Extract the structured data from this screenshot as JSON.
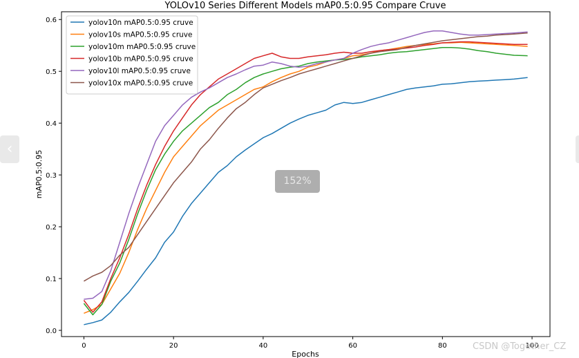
{
  "viewer": {
    "zoom_label": "152%",
    "prev_icon": "chevron-left-icon",
    "prev_symbol": "‹",
    "next_icon": "chevron-right-icon",
    "watermark": "CSDN @Together_CZ"
  },
  "chart_data": {
    "type": "line",
    "title": "YOLOv10 Series Different Models mAP0.5:0.95 Compare Cruve",
    "xlabel": "Epochs",
    "ylabel": "mAP0.5:0.95",
    "xlim": [
      -5,
      104
    ],
    "ylim": [
      -0.012,
      0.615
    ],
    "xticks": [
      0,
      20,
      40,
      60,
      80,
      100
    ],
    "yticks": [
      0.0,
      0.1,
      0.2,
      0.3,
      0.4,
      0.5,
      0.6
    ],
    "grid": false,
    "legend": "top-left",
    "series": [
      {
        "name": "yolov10n mAP0.5:0.95 cruve",
        "color": "#1f77b4",
        "points": [
          [
            0,
            0.011
          ],
          [
            2,
            0.015
          ],
          [
            4,
            0.02
          ],
          [
            6,
            0.035
          ],
          [
            8,
            0.055
          ],
          [
            10,
            0.073
          ],
          [
            12,
            0.095
          ],
          [
            14,
            0.118
          ],
          [
            16,
            0.14
          ],
          [
            18,
            0.17
          ],
          [
            20,
            0.19
          ],
          [
            22,
            0.22
          ],
          [
            24,
            0.245
          ],
          [
            26,
            0.265
          ],
          [
            28,
            0.285
          ],
          [
            30,
            0.305
          ],
          [
            32,
            0.318
          ],
          [
            34,
            0.335
          ],
          [
            36,
            0.348
          ],
          [
            38,
            0.36
          ],
          [
            40,
            0.372
          ],
          [
            42,
            0.38
          ],
          [
            44,
            0.39
          ],
          [
            46,
            0.4
          ],
          [
            48,
            0.408
          ],
          [
            50,
            0.415
          ],
          [
            52,
            0.42
          ],
          [
            54,
            0.425
          ],
          [
            56,
            0.435
          ],
          [
            58,
            0.44
          ],
          [
            60,
            0.438
          ],
          [
            62,
            0.44
          ],
          [
            64,
            0.445
          ],
          [
            66,
            0.45
          ],
          [
            68,
            0.455
          ],
          [
            70,
            0.46
          ],
          [
            72,
            0.465
          ],
          [
            74,
            0.468
          ],
          [
            76,
            0.47
          ],
          [
            78,
            0.472
          ],
          [
            80,
            0.475
          ],
          [
            82,
            0.476
          ],
          [
            84,
            0.478
          ],
          [
            86,
            0.48
          ],
          [
            88,
            0.481
          ],
          [
            90,
            0.482
          ],
          [
            92,
            0.483
          ],
          [
            94,
            0.484
          ],
          [
            96,
            0.485
          ],
          [
            99,
            0.488
          ]
        ]
      },
      {
        "name": "yolov10s mAP0.5:0.95 cruve",
        "color": "#ff7f0e",
        "points": [
          [
            0,
            0.033
          ],
          [
            2,
            0.04
          ],
          [
            4,
            0.05
          ],
          [
            6,
            0.08
          ],
          [
            8,
            0.11
          ],
          [
            10,
            0.15
          ],
          [
            12,
            0.195
          ],
          [
            14,
            0.235
          ],
          [
            16,
            0.27
          ],
          [
            18,
            0.305
          ],
          [
            20,
            0.335
          ],
          [
            22,
            0.355
          ],
          [
            24,
            0.375
          ],
          [
            26,
            0.395
          ],
          [
            28,
            0.41
          ],
          [
            30,
            0.425
          ],
          [
            32,
            0.435
          ],
          [
            34,
            0.445
          ],
          [
            36,
            0.455
          ],
          [
            38,
            0.465
          ],
          [
            40,
            0.47
          ],
          [
            42,
            0.48
          ],
          [
            44,
            0.488
          ],
          [
            46,
            0.495
          ],
          [
            48,
            0.5
          ],
          [
            50,
            0.508
          ],
          [
            52,
            0.512
          ],
          [
            54,
            0.518
          ],
          [
            56,
            0.522
          ],
          [
            58,
            0.525
          ],
          [
            60,
            0.53
          ],
          [
            62,
            0.532
          ],
          [
            64,
            0.535
          ],
          [
            66,
            0.54
          ],
          [
            68,
            0.542
          ],
          [
            70,
            0.545
          ],
          [
            72,
            0.548
          ],
          [
            74,
            0.55
          ],
          [
            76,
            0.552
          ],
          [
            78,
            0.553
          ],
          [
            80,
            0.555
          ],
          [
            82,
            0.555
          ],
          [
            84,
            0.556
          ],
          [
            86,
            0.555
          ],
          [
            88,
            0.554
          ],
          [
            90,
            0.553
          ],
          [
            92,
            0.552
          ],
          [
            94,
            0.551
          ],
          [
            96,
            0.55
          ],
          [
            99,
            0.548
          ]
        ]
      },
      {
        "name": "yolov10m mAP0.5:0.95 cruve",
        "color": "#2ca02c",
        "points": [
          [
            0,
            0.052
          ],
          [
            2,
            0.03
          ],
          [
            4,
            0.05
          ],
          [
            6,
            0.095
          ],
          [
            8,
            0.13
          ],
          [
            10,
            0.175
          ],
          [
            12,
            0.225
          ],
          [
            14,
            0.27
          ],
          [
            16,
            0.31
          ],
          [
            18,
            0.34
          ],
          [
            20,
            0.365
          ],
          [
            22,
            0.385
          ],
          [
            24,
            0.4
          ],
          [
            26,
            0.415
          ],
          [
            28,
            0.43
          ],
          [
            30,
            0.44
          ],
          [
            32,
            0.455
          ],
          [
            34,
            0.465
          ],
          [
            36,
            0.478
          ],
          [
            38,
            0.488
          ],
          [
            40,
            0.495
          ],
          [
            42,
            0.5
          ],
          [
            44,
            0.505
          ],
          [
            46,
            0.508
          ],
          [
            48,
            0.51
          ],
          [
            50,
            0.515
          ],
          [
            52,
            0.518
          ],
          [
            54,
            0.52
          ],
          [
            56,
            0.522
          ],
          [
            58,
            0.523
          ],
          [
            60,
            0.525
          ],
          [
            62,
            0.528
          ],
          [
            64,
            0.53
          ],
          [
            66,
            0.532
          ],
          [
            68,
            0.535
          ],
          [
            70,
            0.537
          ],
          [
            72,
            0.538
          ],
          [
            74,
            0.54
          ],
          [
            76,
            0.542
          ],
          [
            78,
            0.544
          ],
          [
            80,
            0.546
          ],
          [
            82,
            0.546
          ],
          [
            84,
            0.545
          ],
          [
            86,
            0.543
          ],
          [
            88,
            0.54
          ],
          [
            90,
            0.538
          ],
          [
            92,
            0.535
          ],
          [
            94,
            0.533
          ],
          [
            96,
            0.531
          ],
          [
            99,
            0.53
          ]
        ]
      },
      {
        "name": "yolov10b mAP0.5:0.95 cruve",
        "color": "#d62728",
        "points": [
          [
            0,
            0.058
          ],
          [
            2,
            0.035
          ],
          [
            4,
            0.055
          ],
          [
            6,
            0.1
          ],
          [
            8,
            0.14
          ],
          [
            10,
            0.185
          ],
          [
            12,
            0.235
          ],
          [
            14,
            0.28
          ],
          [
            16,
            0.32
          ],
          [
            18,
            0.355
          ],
          [
            20,
            0.385
          ],
          [
            22,
            0.41
          ],
          [
            24,
            0.435
          ],
          [
            26,
            0.455
          ],
          [
            28,
            0.47
          ],
          [
            30,
            0.485
          ],
          [
            32,
            0.495
          ],
          [
            34,
            0.505
          ],
          [
            36,
            0.515
          ],
          [
            38,
            0.525
          ],
          [
            40,
            0.53
          ],
          [
            42,
            0.535
          ],
          [
            44,
            0.528
          ],
          [
            46,
            0.525
          ],
          [
            48,
            0.525
          ],
          [
            50,
            0.528
          ],
          [
            52,
            0.53
          ],
          [
            54,
            0.532
          ],
          [
            56,
            0.535
          ],
          [
            58,
            0.537
          ],
          [
            60,
            0.535
          ],
          [
            62,
            0.535
          ],
          [
            64,
            0.538
          ],
          [
            66,
            0.54
          ],
          [
            68,
            0.542
          ],
          [
            70,
            0.543
          ],
          [
            72,
            0.545
          ],
          [
            74,
            0.547
          ],
          [
            76,
            0.55
          ],
          [
            78,
            0.552
          ],
          [
            80,
            0.555
          ],
          [
            82,
            0.556
          ],
          [
            84,
            0.557
          ],
          [
            86,
            0.557
          ],
          [
            88,
            0.556
          ],
          [
            90,
            0.555
          ],
          [
            92,
            0.554
          ],
          [
            94,
            0.553
          ],
          [
            96,
            0.552
          ],
          [
            99,
            0.552
          ]
        ]
      },
      {
        "name": "yolov10l mAP0.5:0.95 cruve",
        "color": "#9467bd",
        "points": [
          [
            0,
            0.06
          ],
          [
            2,
            0.062
          ],
          [
            4,
            0.075
          ],
          [
            6,
            0.115
          ],
          [
            8,
            0.17
          ],
          [
            10,
            0.225
          ],
          [
            12,
            0.275
          ],
          [
            14,
            0.32
          ],
          [
            16,
            0.365
          ],
          [
            18,
            0.395
          ],
          [
            20,
            0.415
          ],
          [
            22,
            0.435
          ],
          [
            24,
            0.45
          ],
          [
            26,
            0.46
          ],
          [
            28,
            0.468
          ],
          [
            30,
            0.478
          ],
          [
            32,
            0.488
          ],
          [
            34,
            0.495
          ],
          [
            36,
            0.503
          ],
          [
            38,
            0.51
          ],
          [
            40,
            0.512
          ],
          [
            42,
            0.518
          ],
          [
            44,
            0.515
          ],
          [
            46,
            0.51
          ],
          [
            48,
            0.508
          ],
          [
            50,
            0.51
          ],
          [
            52,
            0.515
          ],
          [
            54,
            0.518
          ],
          [
            56,
            0.522
          ],
          [
            58,
            0.525
          ],
          [
            60,
            0.535
          ],
          [
            62,
            0.542
          ],
          [
            64,
            0.548
          ],
          [
            66,
            0.552
          ],
          [
            68,
            0.555
          ],
          [
            70,
            0.56
          ],
          [
            72,
            0.565
          ],
          [
            74,
            0.57
          ],
          [
            76,
            0.575
          ],
          [
            78,
            0.578
          ],
          [
            80,
            0.578
          ],
          [
            82,
            0.575
          ],
          [
            84,
            0.572
          ],
          [
            86,
            0.57
          ],
          [
            88,
            0.57
          ],
          [
            90,
            0.571
          ],
          [
            92,
            0.572
          ],
          [
            94,
            0.573
          ],
          [
            96,
            0.574
          ],
          [
            99,
            0.576
          ]
        ]
      },
      {
        "name": "yolov10x mAP0.5:0.95 cruve",
        "color": "#8c564b",
        "points": [
          [
            0,
            0.095
          ],
          [
            2,
            0.105
          ],
          [
            4,
            0.112
          ],
          [
            6,
            0.125
          ],
          [
            8,
            0.145
          ],
          [
            10,
            0.16
          ],
          [
            12,
            0.185
          ],
          [
            14,
            0.21
          ],
          [
            16,
            0.235
          ],
          [
            18,
            0.26
          ],
          [
            20,
            0.285
          ],
          [
            22,
            0.305
          ],
          [
            24,
            0.325
          ],
          [
            26,
            0.35
          ],
          [
            28,
            0.368
          ],
          [
            30,
            0.39
          ],
          [
            32,
            0.41
          ],
          [
            34,
            0.428
          ],
          [
            36,
            0.44
          ],
          [
            38,
            0.455
          ],
          [
            40,
            0.468
          ],
          [
            42,
            0.475
          ],
          [
            44,
            0.482
          ],
          [
            46,
            0.488
          ],
          [
            48,
            0.495
          ],
          [
            50,
            0.5
          ],
          [
            52,
            0.505
          ],
          [
            54,
            0.51
          ],
          [
            56,
            0.515
          ],
          [
            58,
            0.52
          ],
          [
            60,
            0.525
          ],
          [
            62,
            0.53
          ],
          [
            64,
            0.535
          ],
          [
            66,
            0.538
          ],
          [
            68,
            0.54
          ],
          [
            70,
            0.542
          ],
          [
            72,
            0.546
          ],
          [
            74,
            0.55
          ],
          [
            76,
            0.553
          ],
          [
            78,
            0.556
          ],
          [
            80,
            0.559
          ],
          [
            82,
            0.561
          ],
          [
            84,
            0.563
          ],
          [
            86,
            0.565
          ],
          [
            88,
            0.567
          ],
          [
            90,
            0.568
          ],
          [
            92,
            0.57
          ],
          [
            94,
            0.571
          ],
          [
            96,
            0.572
          ],
          [
            99,
            0.574
          ]
        ]
      }
    ]
  }
}
